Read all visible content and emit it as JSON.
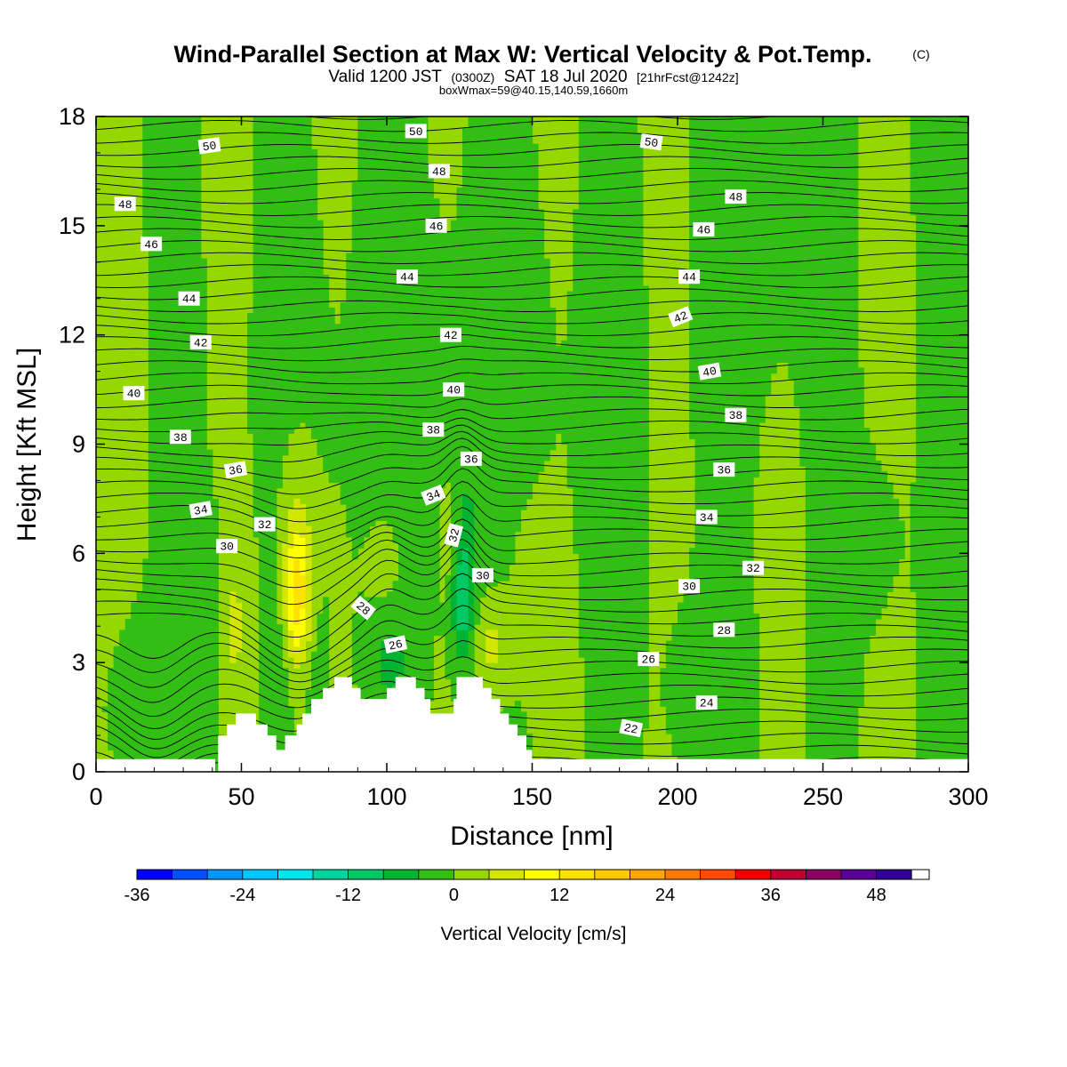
{
  "title": "Wind-Parallel Section at Max W: Vertical Velocity & Pot.Temp.",
  "title_mark": "(C)",
  "subtitle": {
    "a": "Valid 1200 JST",
    "b": "(0300Z)",
    "c": "SAT 18 Jul 2020",
    "d": "[21hrFcst@1242z]"
  },
  "box_info": "boxWmax=59@40.15,140.59,1660m",
  "chart_data": {
    "type": "heatmap",
    "xlabel": "Distance [nm]",
    "ylabel": "Height [Kft MSL]",
    "xlim": [
      0,
      300
    ],
    "ylim": [
      0,
      18
    ],
    "x_ticks": [
      0,
      50,
      100,
      150,
      200,
      250,
      300
    ],
    "y_ticks": [
      0,
      3,
      6,
      9,
      12,
      15,
      18
    ],
    "colorbar": {
      "label": "Vertical Velocity [cm/s]",
      "ticks": [
        -36,
        -24,
        -12,
        0,
        12,
        24,
        36,
        48
      ],
      "min": -36,
      "max": 54,
      "step": 4,
      "colors": [
        "#0000ff",
        "#0050ff",
        "#0096ff",
        "#00c8ff",
        "#00e6f0",
        "#00d2a0",
        "#00c864",
        "#00b432",
        "#32be14",
        "#96d700",
        "#d2e600",
        "#ffff00",
        "#ffe100",
        "#ffc800",
        "#ffa500",
        "#ff7800",
        "#ff4b00",
        "#f00000",
        "#be0032",
        "#8c0064",
        "#5a0096",
        "#320096"
      ]
    },
    "contour_labels": [
      {
        "v": "50",
        "x": 39,
        "y": 17.2,
        "a": -8
      },
      {
        "v": "50",
        "x": 110,
        "y": 17.6,
        "a": 0
      },
      {
        "v": "50",
        "x": 191,
        "y": 17.3,
        "a": 8
      },
      {
        "v": "48",
        "x": 10,
        "y": 15.6,
        "a": 0
      },
      {
        "v": "48",
        "x": 118,
        "y": 16.5,
        "a": 0
      },
      {
        "v": "48",
        "x": 220,
        "y": 15.8,
        "a": 0
      },
      {
        "v": "46",
        "x": 19,
        "y": 14.5,
        "a": 0
      },
      {
        "v": "46",
        "x": 117,
        "y": 15.0,
        "a": 0
      },
      {
        "v": "46",
        "x": 209,
        "y": 14.9,
        "a": 0
      },
      {
        "v": "44",
        "x": 32,
        "y": 13.0,
        "a": 0
      },
      {
        "v": "44",
        "x": 107,
        "y": 13.6,
        "a": 0
      },
      {
        "v": "44",
        "x": 204,
        "y": 13.6,
        "a": 0
      },
      {
        "v": "42",
        "x": 36,
        "y": 11.8,
        "a": 0
      },
      {
        "v": "42",
        "x": 122,
        "y": 12.0,
        "a": 0
      },
      {
        "v": "42",
        "x": 201,
        "y": 12.5,
        "a": -22
      },
      {
        "v": "40",
        "x": 13,
        "y": 10.4,
        "a": 0
      },
      {
        "v": "40",
        "x": 123,
        "y": 10.5,
        "a": 0
      },
      {
        "v": "40",
        "x": 211,
        "y": 11.0,
        "a": -10
      },
      {
        "v": "38",
        "x": 29,
        "y": 9.2,
        "a": 0
      },
      {
        "v": "38",
        "x": 116,
        "y": 9.4,
        "a": 0
      },
      {
        "v": "38",
        "x": 220,
        "y": 9.8,
        "a": 0
      },
      {
        "v": "36",
        "x": 48,
        "y": 8.3,
        "a": -10
      },
      {
        "v": "36",
        "x": 129,
        "y": 8.6,
        "a": 0
      },
      {
        "v": "36",
        "x": 216,
        "y": 8.3,
        "a": 0
      },
      {
        "v": "34",
        "x": 36,
        "y": 7.2,
        "a": -10
      },
      {
        "v": "34",
        "x": 116,
        "y": 7.6,
        "a": -22
      },
      {
        "v": "34",
        "x": 210,
        "y": 7.0,
        "a": 0
      },
      {
        "v": "32",
        "x": 58,
        "y": 6.8,
        "a": 0
      },
      {
        "v": "32",
        "x": 123,
        "y": 6.5,
        "a": -75
      },
      {
        "v": "32",
        "x": 226,
        "y": 5.6,
        "a": 0
      },
      {
        "v": "30",
        "x": 45,
        "y": 6.2,
        "a": 0
      },
      {
        "v": "30",
        "x": 133,
        "y": 5.4,
        "a": 0
      },
      {
        "v": "30",
        "x": 204,
        "y": 5.1,
        "a": 0
      },
      {
        "v": "28",
        "x": 92,
        "y": 4.5,
        "a": 40
      },
      {
        "v": "28",
        "x": 216,
        "y": 3.9,
        "a": 0
      },
      {
        "v": "26",
        "x": 103,
        "y": 3.5,
        "a": -12
      },
      {
        "v": "26",
        "x": 190,
        "y": 3.1,
        "a": 0
      },
      {
        "v": "24",
        "x": 210,
        "y": 1.9,
        "a": 0
      },
      {
        "v": "22",
        "x": 184,
        "y": 1.2,
        "a": 12
      }
    ]
  }
}
